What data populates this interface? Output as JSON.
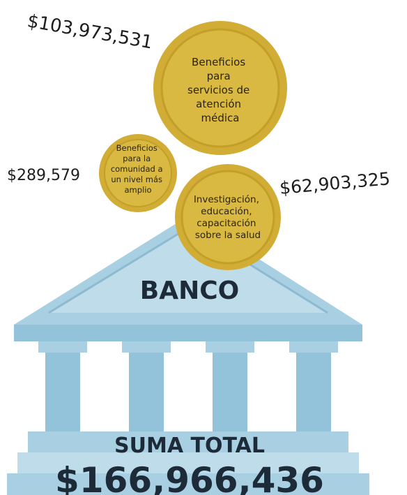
{
  "coins": [
    {
      "lines": [
        "Beneficios",
        "para",
        "servicios de",
        "atención",
        "médica"
      ],
      "amount": "$103,973,531"
    },
    {
      "lines": [
        "Beneficios",
        "para la",
        "comunidad a",
        "un nivel más",
        "amplio"
      ],
      "amount": "$289,579"
    },
    {
      "lines": [
        "Investigación,",
        "educación,",
        "capacitación",
        "sobre la salud"
      ],
      "amount": "$62,903,325"
    }
  ],
  "bank": {
    "label": "BANCO",
    "total_label": "SUMA TOTAL",
    "total": "$166,966,436"
  }
}
